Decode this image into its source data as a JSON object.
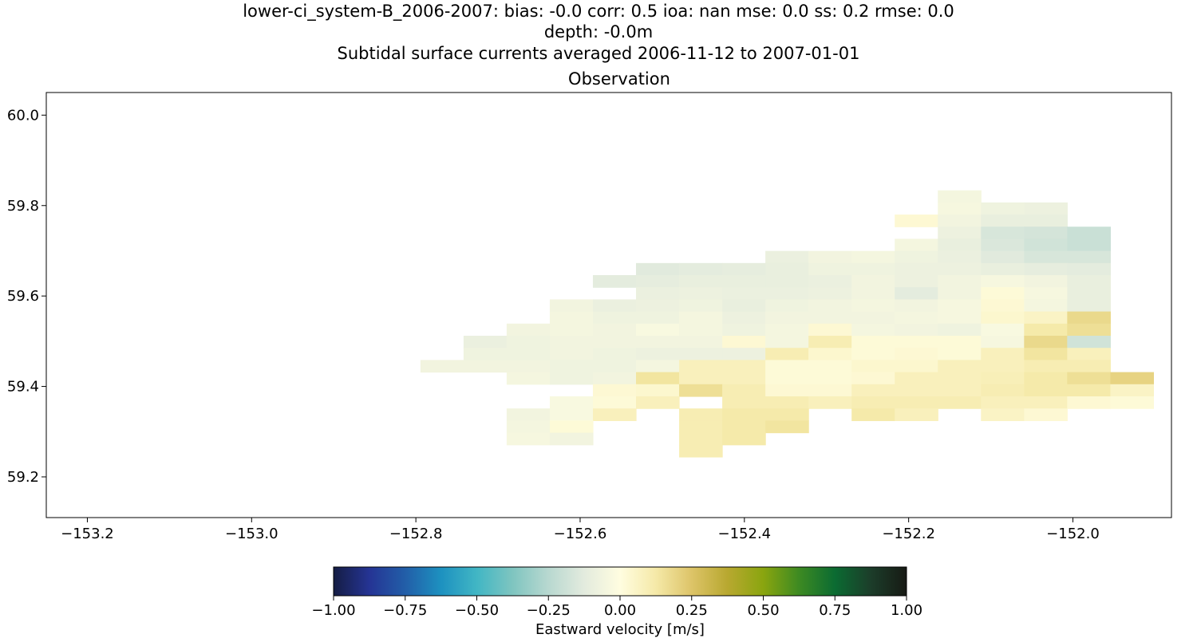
{
  "header": {
    "line1": "lower-ci_system-B_2006-2007: bias: -0.0  corr: 0.5  ioa: nan  mse: 0.0  ss: 0.2  rmse: 0.0",
    "line2": "depth: -0.0m",
    "line3": "Subtidal surface currents averaged 2006-11-12 to 2007-01-01"
  },
  "chart_data": {
    "type": "heatmap",
    "title": "Observation",
    "xlabel": "",
    "ylabel": "",
    "xlim": [
      -153.25,
      -151.88
    ],
    "ylim": [
      59.11,
      60.05
    ],
    "xticks": [
      -153.2,
      -153.0,
      -152.8,
      -152.6,
      -152.4,
      -152.2,
      -152.0
    ],
    "xtick_labels": [
      "−153.2",
      "−153.0",
      "−152.8",
      "−152.6",
      "−152.4",
      "−152.2",
      "−152.0"
    ],
    "yticks": [
      59.2,
      59.4,
      59.6,
      59.8,
      60.0
    ],
    "ytick_labels": [
      "59.2",
      "59.4",
      "59.6",
      "59.8",
      "60.0"
    ],
    "grid": false,
    "cell_lon_width": 0.0525,
    "cell_lat_height": 0.0268,
    "colorbar": {
      "label": "Eastward velocity [m/s]",
      "vmin": -1.0,
      "vmax": 1.0,
      "ticks": [
        -1.0,
        -0.75,
        -0.5,
        -0.25,
        0.0,
        0.25,
        0.5,
        0.75,
        1.0
      ],
      "tick_labels": [
        "−1.00",
        "−0.75",
        "−0.50",
        "−0.25",
        "0.00",
        "0.25",
        "0.50",
        "0.75",
        "1.00"
      ],
      "orientation": "horizontal",
      "placement": "bottom",
      "colormap": [
        [
          -1.0,
          "#151d44"
        ],
        [
          -0.875,
          "#253494"
        ],
        [
          -0.75,
          "#225ea8"
        ],
        [
          -0.625,
          "#1d91c0"
        ],
        [
          -0.5,
          "#41b6c4"
        ],
        [
          -0.375,
          "#7fc5c0"
        ],
        [
          -0.25,
          "#b8d8d0"
        ],
        [
          -0.125,
          "#e3ebde"
        ],
        [
          0.0,
          "#fffde0"
        ],
        [
          0.125,
          "#f5e9a8"
        ],
        [
          0.25,
          "#ddc468"
        ],
        [
          0.375,
          "#b8a830"
        ],
        [
          0.5,
          "#8aa50f"
        ],
        [
          0.625,
          "#3d8a22"
        ],
        [
          0.75,
          "#0b6b32"
        ],
        [
          0.875,
          "#1c3d2a"
        ],
        [
          1.0,
          "#171a14"
        ]
      ]
    },
    "rows": [
      {
        "lat": 59.8203,
        "cells": [
          [
            -152.1382,
            -0.05
          ]
        ]
      },
      {
        "lat": 59.7935,
        "cells": [
          [
            -152.1382,
            -0.04
          ],
          [
            -152.0857,
            -0.07
          ],
          [
            -152.0332,
            -0.08
          ]
        ]
      },
      {
        "lat": 59.7667,
        "cells": [
          [
            -152.1907,
            0.03
          ],
          [
            -152.1382,
            -0.06
          ],
          [
            -152.0857,
            -0.1
          ],
          [
            -152.0332,
            -0.1
          ]
        ]
      },
      {
        "lat": 59.7399,
        "cells": [
          [
            -152.1382,
            -0.08
          ],
          [
            -152.0857,
            -0.16
          ],
          [
            -152.0332,
            -0.17
          ],
          [
            -151.9807,
            -0.2
          ]
        ]
      },
      {
        "lat": 59.7131,
        "cells": [
          [
            -152.1907,
            -0.05
          ],
          [
            -152.1382,
            -0.1
          ],
          [
            -152.0857,
            -0.15
          ],
          [
            -152.0332,
            -0.18
          ],
          [
            -151.9807,
            -0.2
          ]
        ]
      },
      {
        "lat": 59.6863,
        "cells": [
          [
            -152.3482,
            -0.09
          ],
          [
            -152.2957,
            -0.06
          ],
          [
            -152.2432,
            -0.05
          ],
          [
            -152.1907,
            -0.07
          ],
          [
            -152.1382,
            -0.09
          ],
          [
            -152.0857,
            -0.13
          ],
          [
            -152.0332,
            -0.16
          ],
          [
            -151.9807,
            -0.16
          ]
        ]
      },
      {
        "lat": 59.6595,
        "cells": [
          [
            -152.5057,
            -0.13
          ],
          [
            -152.4532,
            -0.12
          ],
          [
            -152.4007,
            -0.11
          ],
          [
            -152.3482,
            -0.1
          ],
          [
            -152.2957,
            -0.07
          ],
          [
            -152.2432,
            -0.07
          ],
          [
            -152.1907,
            -0.08
          ],
          [
            -152.1382,
            -0.08
          ],
          [
            -152.0857,
            -0.1
          ],
          [
            -152.0332,
            -0.11
          ],
          [
            -151.9807,
            -0.12
          ]
        ]
      },
      {
        "lat": 59.6327,
        "cells": [
          [
            -152.5582,
            -0.12
          ],
          [
            -152.5057,
            -0.11
          ],
          [
            -152.4532,
            -0.1
          ],
          [
            -152.4007,
            -0.1
          ],
          [
            -152.3482,
            -0.1
          ],
          [
            -152.2957,
            -0.09
          ],
          [
            -152.2432,
            -0.06
          ],
          [
            -152.1907,
            -0.08
          ],
          [
            -152.1382,
            -0.06
          ],
          [
            -152.0857,
            -0.04
          ],
          [
            -152.0332,
            -0.06
          ],
          [
            -151.9807,
            -0.1
          ]
        ]
      },
      {
        "lat": 59.6059,
        "cells": [
          [
            -152.5057,
            -0.09
          ],
          [
            -152.4532,
            -0.08
          ],
          [
            -152.4007,
            -0.09
          ],
          [
            -152.3482,
            -0.09
          ],
          [
            -152.2957,
            -0.08
          ],
          [
            -152.2432,
            -0.06
          ],
          [
            -152.1907,
            -0.12
          ],
          [
            -152.1382,
            -0.06
          ],
          [
            -152.0857,
            0.02
          ],
          [
            -152.0332,
            -0.04
          ],
          [
            -151.9807,
            -0.1
          ]
        ]
      },
      {
        "lat": 59.5791,
        "cells": [
          [
            -152.6107,
            -0.06
          ],
          [
            -152.5582,
            -0.09
          ],
          [
            -152.5057,
            -0.08
          ],
          [
            -152.4532,
            -0.07
          ],
          [
            -152.4007,
            -0.1
          ],
          [
            -152.3482,
            -0.07
          ],
          [
            -152.2957,
            -0.06
          ],
          [
            -152.2432,
            -0.05
          ],
          [
            -152.1907,
            -0.06
          ],
          [
            -152.1382,
            -0.04
          ],
          [
            -152.0857,
            0.03
          ],
          [
            -152.0332,
            -0.05
          ],
          [
            -151.9807,
            -0.1
          ]
        ]
      },
      {
        "lat": 59.5523,
        "cells": [
          [
            -152.6107,
            -0.05
          ],
          [
            -152.5582,
            -0.07
          ],
          [
            -152.5057,
            -0.07
          ],
          [
            -152.4532,
            -0.05
          ],
          [
            -152.4007,
            -0.08
          ],
          [
            -152.3482,
            -0.06
          ],
          [
            -152.2957,
            -0.06
          ],
          [
            -152.2432,
            -0.06
          ],
          [
            -152.1907,
            -0.05
          ],
          [
            -152.1382,
            -0.04
          ],
          [
            -152.0857,
            0.04
          ],
          [
            -152.0332,
            0.06
          ],
          [
            -151.9807,
            0.18
          ]
        ]
      },
      {
        "lat": 59.5255,
        "cells": [
          [
            -152.6632,
            -0.06
          ],
          [
            -152.6107,
            -0.05
          ],
          [
            -152.5582,
            -0.06
          ],
          [
            -152.5057,
            -0.03
          ],
          [
            -152.4532,
            -0.05
          ],
          [
            -152.4007,
            -0.07
          ],
          [
            -152.3482,
            -0.05
          ],
          [
            -152.2957,
            0.03
          ],
          [
            -152.2432,
            -0.05
          ],
          [
            -152.1907,
            -0.06
          ],
          [
            -152.1382,
            -0.07
          ],
          [
            -152.0857,
            -0.03
          ],
          [
            -152.0332,
            0.12
          ],
          [
            -151.9807,
            0.16
          ]
        ]
      },
      {
        "lat": 59.4987,
        "cells": [
          [
            -152.7157,
            -0.09
          ],
          [
            -152.6632,
            -0.07
          ],
          [
            -152.6107,
            -0.06
          ],
          [
            -152.5582,
            -0.06
          ],
          [
            -152.5057,
            -0.06
          ],
          [
            -152.4532,
            -0.06
          ],
          [
            -152.4007,
            0.03
          ],
          [
            -152.3482,
            -0.05
          ],
          [
            -152.2957,
            0.1
          ],
          [
            -152.2432,
            0.02
          ],
          [
            -152.1907,
            0.02
          ],
          [
            -152.1382,
            0.02
          ],
          [
            -152.0857,
            -0.04
          ],
          [
            -152.0332,
            0.18
          ],
          [
            -151.9807,
            -0.18
          ]
        ]
      },
      {
        "lat": 59.4719,
        "cells": [
          [
            -152.7157,
            -0.07
          ],
          [
            -152.6632,
            -0.07
          ],
          [
            -152.6107,
            -0.06
          ],
          [
            -152.5582,
            -0.07
          ],
          [
            -152.5057,
            -0.08
          ],
          [
            -152.4532,
            -0.08
          ],
          [
            -152.4007,
            -0.08
          ],
          [
            -152.3482,
            0.1
          ],
          [
            -152.2957,
            0.04
          ],
          [
            -152.2432,
            0.02
          ],
          [
            -152.1907,
            0.03
          ],
          [
            -152.1382,
            0.02
          ],
          [
            -152.0857,
            0.08
          ],
          [
            -152.0332,
            0.14
          ],
          [
            -151.9807,
            0.08
          ]
        ]
      },
      {
        "lat": 59.4451,
        "cells": [
          [
            -152.7682,
            -0.06
          ],
          [
            -152.7157,
            -0.06
          ],
          [
            -152.6632,
            -0.06
          ],
          [
            -152.6107,
            -0.07
          ],
          [
            -152.5582,
            -0.07
          ],
          [
            -152.5057,
            -0.05
          ],
          [
            -152.4532,
            0.08
          ],
          [
            -152.4007,
            0.08
          ],
          [
            -152.3482,
            0.02
          ],
          [
            -152.2957,
            0.02
          ],
          [
            -152.2432,
            0.04
          ],
          [
            -152.1907,
            0.04
          ],
          [
            -152.1382,
            0.08
          ],
          [
            -152.0857,
            0.08
          ],
          [
            -152.0332,
            0.1
          ],
          [
            -151.9807,
            0.1
          ]
        ]
      },
      {
        "lat": 59.4183,
        "cells": [
          [
            -152.6632,
            -0.05
          ],
          [
            -152.6107,
            -0.07
          ],
          [
            -152.5582,
            -0.06
          ],
          [
            -152.5057,
            0.14
          ],
          [
            -152.4532,
            0.08
          ],
          [
            -152.4007,
            0.08
          ],
          [
            -152.3482,
            0.02
          ],
          [
            -152.2957,
            0.02
          ],
          [
            -152.2432,
            0.03
          ],
          [
            -152.1907,
            0.08
          ],
          [
            -152.1382,
            0.08
          ],
          [
            -152.0857,
            0.09
          ],
          [
            -152.0332,
            0.12
          ],
          [
            -151.9807,
            0.16
          ],
          [
            -151.9282,
            0.2
          ]
        ]
      },
      {
        "lat": 59.3915,
        "cells": [
          [
            -152.5582,
            0.03
          ],
          [
            -152.5057,
            0.04
          ],
          [
            -152.4532,
            0.16
          ],
          [
            -152.4007,
            0.1
          ],
          [
            -152.3482,
            0.03
          ],
          [
            -152.2957,
            0.03
          ],
          [
            -152.2432,
            0.08
          ],
          [
            -152.1907,
            0.08
          ],
          [
            -152.1382,
            0.08
          ],
          [
            -152.0857,
            0.1
          ],
          [
            -152.0332,
            0.12
          ],
          [
            -151.9807,
            0.12
          ],
          [
            -151.9282,
            0.06
          ]
        ]
      },
      {
        "lat": 59.3647,
        "cells": [
          [
            -152.6107,
            -0.03
          ],
          [
            -152.5582,
            0.02
          ],
          [
            -152.5057,
            0.08
          ],
          [
            -152.4007,
            0.1
          ],
          [
            -152.3482,
            0.1
          ],
          [
            -152.2957,
            0.08
          ],
          [
            -152.2432,
            0.1
          ],
          [
            -152.1907,
            0.1
          ],
          [
            -152.1382,
            0.1
          ],
          [
            -152.0857,
            0.08
          ],
          [
            -152.0332,
            0.08
          ],
          [
            -151.9807,
            0.03
          ],
          [
            -151.9282,
            0.02
          ]
        ]
      },
      {
        "lat": 59.3379,
        "cells": [
          [
            -152.6632,
            -0.06
          ],
          [
            -152.6107,
            -0.03
          ],
          [
            -152.5582,
            0.08
          ],
          [
            -152.4532,
            0.1
          ],
          [
            -152.4007,
            0.12
          ],
          [
            -152.3482,
            0.12
          ],
          [
            -152.2432,
            0.12
          ],
          [
            -152.1907,
            0.08
          ],
          [
            -152.0857,
            0.06
          ],
          [
            -152.0332,
            0.03
          ]
        ]
      },
      {
        "lat": 59.3111,
        "cells": [
          [
            -152.6632,
            -0.05
          ],
          [
            -152.6107,
            0.02
          ],
          [
            -152.4532,
            0.1
          ],
          [
            -152.4007,
            0.12
          ],
          [
            -152.3482,
            0.14
          ]
        ]
      },
      {
        "lat": 59.2843,
        "cells": [
          [
            -152.6632,
            -0.04
          ],
          [
            -152.6107,
            -0.06
          ],
          [
            -152.4532,
            0.1
          ],
          [
            -152.4007,
            0.12
          ]
        ]
      },
      {
        "lat": 59.2575,
        "cells": [
          [
            -152.4532,
            0.1
          ]
        ]
      }
    ]
  }
}
